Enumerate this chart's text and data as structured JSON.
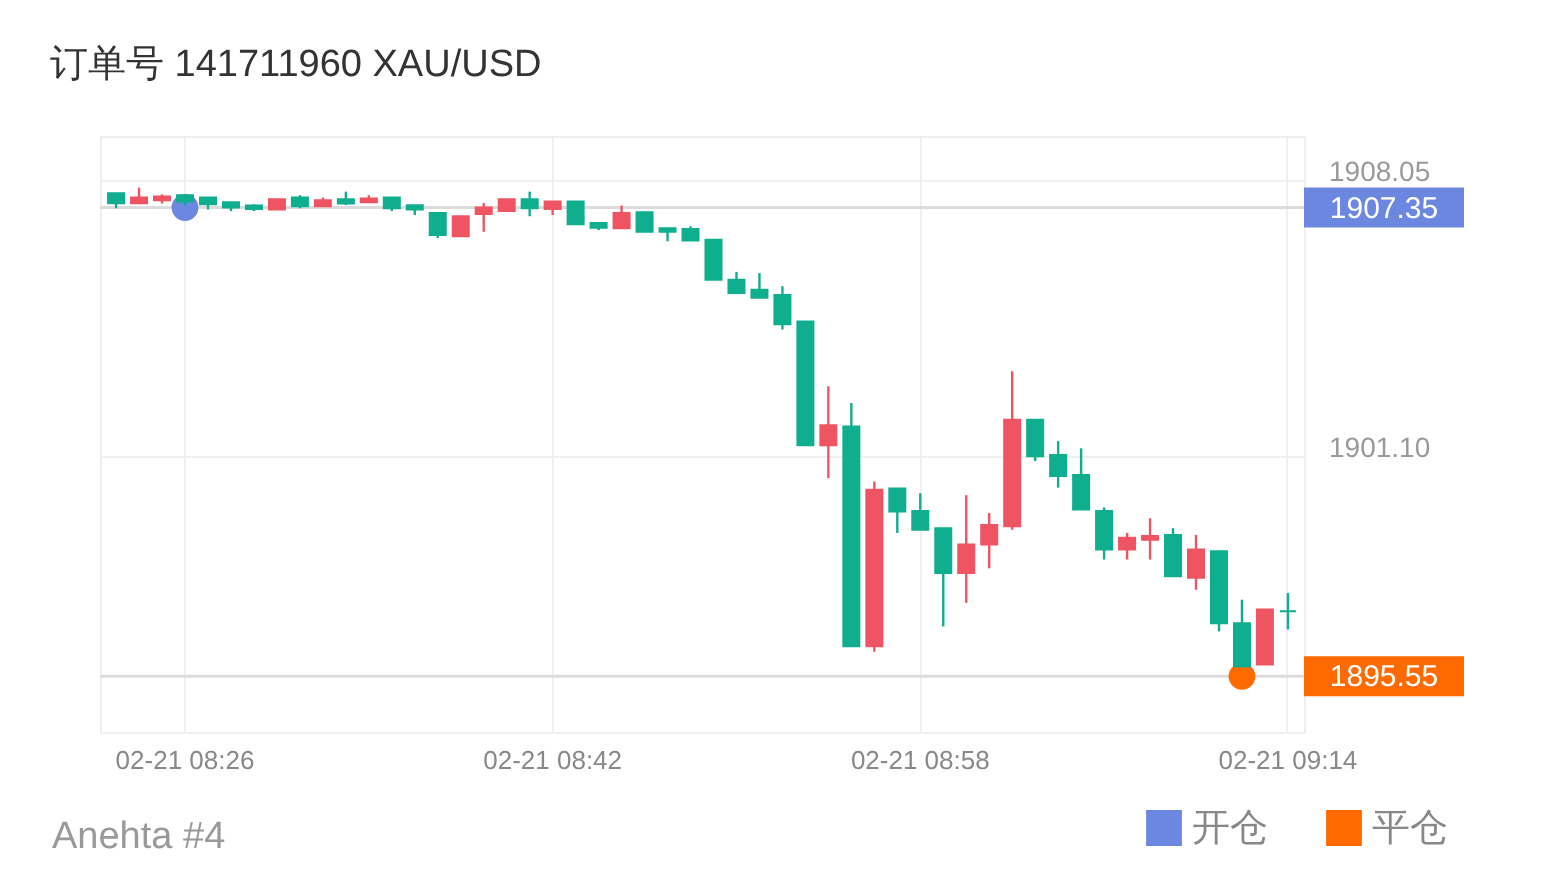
{
  "chart_data": {
    "type": "candlestick",
    "title": "订单号 141711960    XAU/USD",
    "categories": [
      null,
      null,
      null,
      "02-21 08:26",
      null,
      null,
      null,
      null,
      null,
      null,
      null,
      null,
      null,
      null,
      null,
      null,
      null,
      null,
      null,
      "02-21 08:42",
      null,
      null,
      null,
      null,
      null,
      null,
      null,
      null,
      null,
      null,
      null,
      null,
      null,
      null,
      null,
      "02-21 08:58",
      null,
      null,
      null,
      null,
      null,
      null,
      null,
      null,
      null,
      null,
      null,
      null,
      null,
      null,
      null,
      "02-21 09:14"
    ],
    "ohlc": [
      [
        1907.71,
        1907.71,
        1907.33,
        1907.46
      ],
      [
        1907.46,
        1907.85,
        1907.46,
        1907.6
      ],
      [
        1907.53,
        1907.68,
        1907.45,
        1907.63
      ],
      [
        1907.66,
        1907.66,
        1907.4,
        1907.5
      ],
      [
        1907.6,
        1907.6,
        1907.3,
        1907.43
      ],
      [
        1907.48,
        1907.48,
        1907.26,
        1907.35
      ],
      [
        1907.4,
        1907.43,
        1907.26,
        1907.31
      ],
      [
        1907.3,
        1907.56,
        1907.3,
        1907.56
      ],
      [
        1907.6,
        1907.66,
        1907.33,
        1907.38
      ],
      [
        1907.38,
        1907.6,
        1907.38,
        1907.53
      ],
      [
        1907.56,
        1907.75,
        1907.41,
        1907.45
      ],
      [
        1907.48,
        1907.66,
        1907.48,
        1907.58
      ],
      [
        1907.6,
        1907.6,
        1907.26,
        1907.33
      ],
      [
        1907.41,
        1907.41,
        1907.16,
        1907.3
      ],
      [
        1907.21,
        1907.21,
        1906.58,
        1906.66
      ],
      [
        1906.63,
        1907.13,
        1906.63,
        1907.13
      ],
      [
        1907.19,
        1907.46,
        1906.74,
        1907.35
      ],
      [
        1907.26,
        1907.56,
        1907.26,
        1907.56
      ],
      [
        1907.56,
        1907.75,
        1907.13,
        1907.33
      ],
      [
        1907.31,
        1907.5,
        1907.16,
        1907.5
      ],
      [
        1907.5,
        1907.5,
        1906.93,
        1906.93
      ],
      [
        1906.96,
        1906.96,
        1906.78,
        1906.84
      ],
      [
        1906.83,
        1907.4,
        1906.83,
        1907.21
      ],
      [
        1907.23,
        1907.23,
        1906.74,
        1906.74
      ],
      [
        1906.83,
        1906.83,
        1906.5,
        1906.74
      ],
      [
        1906.81,
        1906.88,
        1906.52,
        1906.52
      ],
      [
        1906.54,
        1906.54,
        1905.53,
        1905.53
      ],
      [
        1905.53,
        1905.73,
        1905.2,
        1905.2
      ],
      [
        1905.28,
        1905.7,
        1905.08,
        1905.08
      ],
      [
        1905.15,
        1905.37,
        1904.28,
        1904.41
      ],
      [
        1904.48,
        1904.48,
        1901.37,
        1901.37
      ],
      [
        1901.37,
        1902.85,
        1900.54,
        1901.87
      ],
      [
        1901.84,
        1902.43,
        1896.31,
        1896.31
      ],
      [
        1896.31,
        1900.45,
        1896.17,
        1900.25
      ],
      [
        1900.28,
        1900.28,
        1899.16,
        1899.7
      ],
      [
        1899.71,
        1900.16,
        1899.24,
        1899.24
      ],
      [
        1899.28,
        1899.28,
        1896.81,
        1898.15
      ],
      [
        1898.15,
        1900.11,
        1897.4,
        1898.87
      ],
      [
        1898.87,
        1899.66,
        1898.27,
        1899.36
      ],
      [
        1899.33,
        1903.23,
        1899.24,
        1902.01
      ],
      [
        1902.01,
        1902.01,
        1900.97,
        1901.09
      ],
      [
        1901.12,
        1901.47,
        1900.3,
        1900.59
      ],
      [
        1900.62,
        1901.29,
        1899.75,
        1899.75
      ],
      [
        1899.71,
        1899.8,
        1898.49,
        1898.74
      ],
      [
        1898.74,
        1899.16,
        1898.49,
        1899.04
      ],
      [
        1898.99,
        1899.53,
        1898.49,
        1899.08
      ],
      [
        1899.11,
        1899.28,
        1898.07,
        1898.07
      ],
      [
        1898.03,
        1899.11,
        1897.73,
        1898.74
      ],
      [
        1898.7,
        1898.7,
        1896.68,
        1896.89
      ],
      [
        1896.89,
        1897.48,
        1895.8,
        1895.8
      ],
      [
        1895.85,
        1897.23,
        1895.85,
        1897.23
      ],
      [
        1897.19,
        1897.65,
        1896.73,
        1897.19
      ]
    ],
    "colors": [
      "#0fae8f",
      "#ef5463",
      "#ef5463",
      "#0fae8f",
      "#0fae8f",
      "#0fae8f",
      "#0fae8f",
      "#ef5463",
      "#0fae8f",
      "#ef5463",
      "#0fae8f",
      "#ef5463",
      "#0fae8f",
      "#0fae8f",
      "#0fae8f",
      "#ef5463",
      "#ef5463",
      "#ef5463",
      "#0fae8f",
      "#ef5463",
      "#0fae8f",
      "#0fae8f",
      "#ef5463",
      "#0fae8f",
      "#0fae8f",
      "#0fae8f",
      "#0fae8f",
      "#0fae8f",
      "#0fae8f",
      "#0fae8f",
      "#0fae8f",
      "#ef5463",
      "#0fae8f",
      "#ef5463",
      "#0fae8f",
      "#0fae8f",
      "#0fae8f",
      "#ef5463",
      "#ef5463",
      "#ef5463",
      "#0fae8f",
      "#0fae8f",
      "#0fae8f",
      "#0fae8f",
      "#ef5463",
      "#ef5463",
      "#0fae8f",
      "#ef5463",
      "#0fae8f",
      "#0fae8f",
      "#ef5463",
      "#0fae8f"
    ],
    "series": [
      {
        "type": "scatter",
        "name": "开仓",
        "color": "#6c87e0",
        "values": [
          null,
          null,
          null,
          1907.35,
          null,
          null,
          null,
          null,
          null,
          null,
          null,
          null,
          null,
          null,
          null,
          null,
          null,
          null,
          null,
          null,
          null,
          null,
          null,
          null,
          null,
          null,
          null,
          null,
          null,
          null,
          null,
          null,
          null,
          null,
          null,
          null,
          null,
          null,
          null,
          null,
          null,
          null,
          null,
          null,
          null,
          null,
          null,
          null,
          null,
          null,
          null,
          null
        ]
      },
      {
        "type": "scatter",
        "name": "平仓",
        "color": "#ff6a00",
        "values": [
          null,
          null,
          null,
          null,
          null,
          null,
          null,
          null,
          null,
          null,
          null,
          null,
          null,
          null,
          null,
          null,
          null,
          null,
          null,
          null,
          null,
          null,
          null,
          null,
          null,
          null,
          null,
          null,
          null,
          null,
          null,
          null,
          null,
          null,
          null,
          null,
          null,
          null,
          null,
          null,
          null,
          null,
          null,
          null,
          null,
          null,
          null,
          null,
          null,
          1895.55,
          null,
          null
        ]
      }
    ],
    "ylim": [
      1894.15,
      1909.15
    ],
    "yticks": [
      {
        "value": 1908.05,
        "label": "1908.05"
      },
      {
        "value": 1901.1,
        "label": "1901.10"
      }
    ],
    "ref_lines": [
      {
        "axis": "y",
        "value": 1907.35,
        "label": "1907.35",
        "color": "#dcdcdc"
      },
      {
        "axis": "y",
        "value": 1895.55,
        "label": "1895.55",
        "color": "#dcdcdc"
      }
    ],
    "annotations": [
      "Anehta #4"
    ],
    "grid": true,
    "legend": "bottom right",
    "marker": "circle"
  }
}
